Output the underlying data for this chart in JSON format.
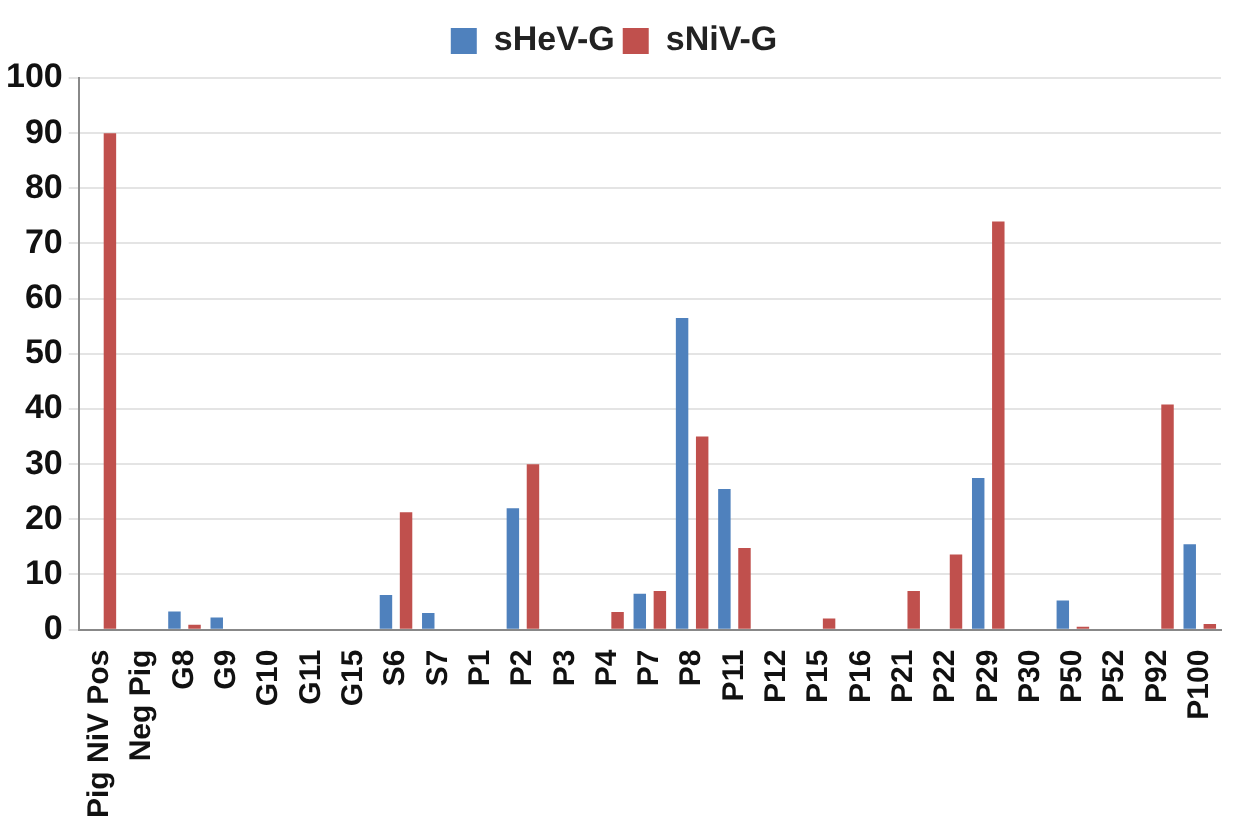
{
  "chart_data": {
    "type": "bar",
    "categories": [
      "Pig NiV Pos",
      "Neg Pig",
      "G8",
      "G9",
      "G10",
      "G11",
      "G15",
      "S6",
      "S7",
      "P1",
      "P2",
      "P3",
      "P4",
      "P7",
      "P8",
      "P11",
      "P12",
      "P15",
      "P16",
      "P21",
      "P22",
      "P29",
      "P30",
      "P50",
      "P52",
      "P92",
      "P100"
    ],
    "series": [
      {
        "name": "sHeV-G",
        "color": "#4f81bd",
        "values": [
          0,
          0,
          3.3,
          2.2,
          0,
          0,
          0,
          6.3,
          3,
          0,
          22,
          0,
          0,
          6.5,
          56.5,
          25.5,
          0,
          0,
          0,
          0,
          0,
          27.5,
          0,
          5.3,
          0,
          0,
          15.5
        ]
      },
      {
        "name": "sNiV-G",
        "color": "#c0504d",
        "values": [
          90,
          0,
          0.9,
          0,
          0,
          0,
          0,
          21.3,
          0,
          0,
          30,
          0,
          3.2,
          7,
          35,
          14.8,
          0,
          2,
          0,
          7,
          13.6,
          74,
          0,
          0.5,
          0,
          40.8,
          1
        ]
      }
    ],
    "ylim": [
      0,
      100
    ],
    "yticks": [
      0,
      10,
      20,
      30,
      40,
      50,
      60,
      70,
      80,
      90,
      100
    ],
    "grid": "y",
    "legend": "top"
  }
}
